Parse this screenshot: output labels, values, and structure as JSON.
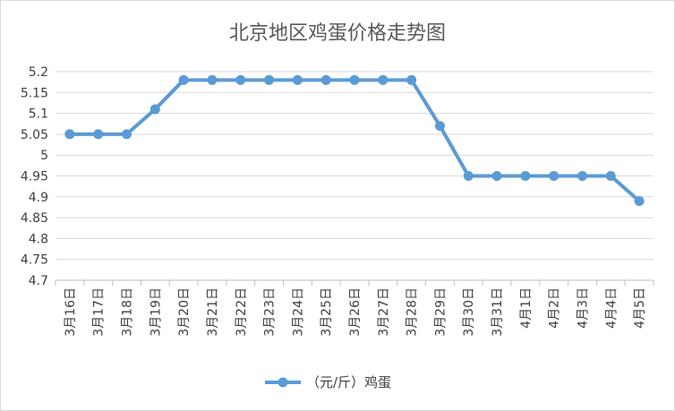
{
  "chart_data": {
    "type": "line",
    "title": "北京地区鸡蛋价格走势图",
    "categories": [
      "3月16日",
      "3月17日",
      "3月18日",
      "3月19日",
      "3月20日",
      "3月21日",
      "3月22日",
      "3月23日",
      "3月24日",
      "3月25日",
      "3月26日",
      "3月27日",
      "3月28日",
      "3月29日",
      "3月30日",
      "3月31日",
      "4月1日",
      "4月2日",
      "4月3日",
      "4月4日",
      "4月5日"
    ],
    "series": [
      {
        "name": "（元/斤）鸡蛋",
        "values": [
          5.05,
          5.05,
          5.05,
          5.11,
          5.18,
          5.18,
          5.18,
          5.18,
          5.18,
          5.18,
          5.18,
          5.18,
          5.18,
          5.07,
          4.95,
          4.95,
          4.95,
          4.95,
          4.95,
          4.95,
          4.89
        ]
      }
    ],
    "y_ticks": [
      "4.7",
      "4.75",
      "4.8",
      "4.85",
      "4.9",
      "4.95",
      "5",
      "5.05",
      "5.1",
      "5.15",
      "5.2"
    ],
    "ylim": [
      4.7,
      5.2
    ],
    "grid": true,
    "legend": "bottom",
    "colors": {
      "line": "#5b9bd5",
      "grid": "#d9d9d9",
      "axis": "#bfbfbf"
    }
  }
}
